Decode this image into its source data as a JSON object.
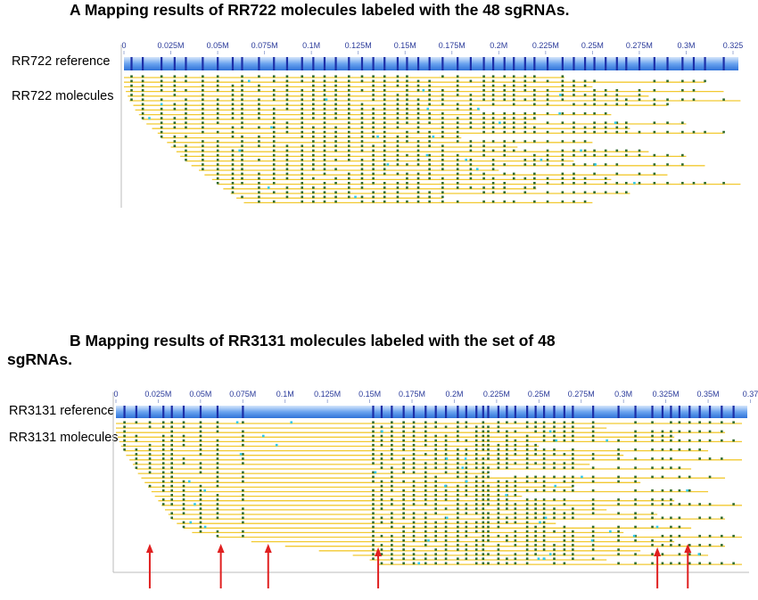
{
  "panel_a": {
    "title": "A   Mapping results of RR722 molecules labeled with the 48 sgRNAs.",
    "reference_label": "RR722 reference",
    "molecules_label": "RR722 molecules",
    "ruler_ticks": [
      "0",
      "0.025M",
      "0.05M",
      "0.075M",
      "0.1M",
      "0.125M",
      "0.15M",
      "0.175M",
      "0.2M",
      "0.225M",
      "0.25M",
      "0.275M",
      "0.3M",
      "0.325"
    ],
    "ruler_max": 0.325,
    "reference_sites": [
      0.004,
      0.01,
      0.02,
      0.027,
      0.033,
      0.042,
      0.05,
      0.058,
      0.063,
      0.072,
      0.08,
      0.087,
      0.095,
      0.101,
      0.107,
      0.113,
      0.12,
      0.127,
      0.133,
      0.139,
      0.146,
      0.151,
      0.157,
      0.163,
      0.17,
      0.178,
      0.185,
      0.192,
      0.197,
      0.203,
      0.208,
      0.214,
      0.219,
      0.226,
      0.234,
      0.24,
      0.246,
      0.251,
      0.257,
      0.263,
      0.268,
      0.275,
      0.283,
      0.29,
      0.298,
      0.304,
      0.31,
      0.32
    ],
    "molecules": [
      {
        "start": 0.0,
        "end": 0.235
      },
      {
        "start": 0.0,
        "end": 0.31
      },
      {
        "start": 0.0,
        "end": 0.25
      },
      {
        "start": 0.001,
        "end": 0.32
      },
      {
        "start": 0.002,
        "end": 0.28
      },
      {
        "start": 0.003,
        "end": 0.33
      },
      {
        "start": 0.005,
        "end": 0.29
      },
      {
        "start": 0.006,
        "end": 0.19
      },
      {
        "start": 0.008,
        "end": 0.26
      },
      {
        "start": 0.01,
        "end": 0.22
      },
      {
        "start": 0.012,
        "end": 0.3
      },
      {
        "start": 0.015,
        "end": 0.27
      },
      {
        "start": 0.018,
        "end": 0.32
      },
      {
        "start": 0.02,
        "end": 0.18
      },
      {
        "start": 0.023,
        "end": 0.25
      },
      {
        "start": 0.025,
        "end": 0.21
      },
      {
        "start": 0.028,
        "end": 0.28
      },
      {
        "start": 0.03,
        "end": 0.3
      },
      {
        "start": 0.033,
        "end": 0.24
      },
      {
        "start": 0.036,
        "end": 0.31
      },
      {
        "start": 0.04,
        "end": 0.2
      },
      {
        "start": 0.043,
        "end": 0.29
      },
      {
        "start": 0.047,
        "end": 0.26
      },
      {
        "start": 0.05,
        "end": 0.33
      },
      {
        "start": 0.053,
        "end": 0.22
      },
      {
        "start": 0.057,
        "end": 0.27
      },
      {
        "start": 0.06,
        "end": 0.17
      },
      {
        "start": 0.064,
        "end": 0.25
      }
    ]
  },
  "panel_b": {
    "title_line1": "B   Mapping results of RR3131 molecules labeled with the set of 48",
    "title_line2": "sgRNAs.",
    "reference_label": "RR3131 reference",
    "molecules_label": "RR3131 molecules",
    "ruler_ticks": [
      "0",
      "0.025M",
      "0.05M",
      "0.075M",
      "0.1M",
      "0.125M",
      "0.15M",
      "0.175M",
      "0.2M",
      "0.225M",
      "0.25M",
      "0.275M",
      "0.3M",
      "0.325M",
      "0.35M",
      "0.37"
    ],
    "ruler_max": 0.37,
    "reference_sites": [
      0.005,
      0.012,
      0.02,
      0.028,
      0.033,
      0.04,
      0.05,
      0.06,
      0.075,
      0.152,
      0.157,
      0.163,
      0.17,
      0.176,
      0.183,
      0.189,
      0.195,
      0.202,
      0.207,
      0.213,
      0.217,
      0.22,
      0.226,
      0.231,
      0.236,
      0.243,
      0.248,
      0.253,
      0.259,
      0.265,
      0.27,
      0.282,
      0.297,
      0.307,
      0.317,
      0.323,
      0.328,
      0.333,
      0.339,
      0.345,
      0.351,
      0.358,
      0.365
    ],
    "molecules": [
      {
        "start": 0.0,
        "end": 0.37
      },
      {
        "start": 0.0,
        "end": 0.29
      },
      {
        "start": 0.0,
        "end": 0.36
      },
      {
        "start": 0.001,
        "end": 0.33
      },
      {
        "start": 0.002,
        "end": 0.37
      },
      {
        "start": 0.003,
        "end": 0.25
      },
      {
        "start": 0.005,
        "end": 0.35
      },
      {
        "start": 0.006,
        "end": 0.3
      },
      {
        "start": 0.008,
        "end": 0.37
      },
      {
        "start": 0.01,
        "end": 0.28
      },
      {
        "start": 0.012,
        "end": 0.34
      },
      {
        "start": 0.013,
        "end": 0.22
      },
      {
        "start": 0.015,
        "end": 0.36
      },
      {
        "start": 0.017,
        "end": 0.31
      },
      {
        "start": 0.019,
        "end": 0.27
      },
      {
        "start": 0.021,
        "end": 0.35
      },
      {
        "start": 0.023,
        "end": 0.24
      },
      {
        "start": 0.025,
        "end": 0.33
      },
      {
        "start": 0.027,
        "end": 0.37
      },
      {
        "start": 0.029,
        "end": 0.29
      },
      {
        "start": 0.031,
        "end": 0.32
      },
      {
        "start": 0.033,
        "end": 0.36
      },
      {
        "start": 0.036,
        "end": 0.26
      },
      {
        "start": 0.04,
        "end": 0.34
      },
      {
        "start": 0.045,
        "end": 0.3
      },
      {
        "start": 0.06,
        "end": 0.37
      },
      {
        "start": 0.08,
        "end": 0.33
      },
      {
        "start": 0.1,
        "end": 0.36
      },
      {
        "start": 0.12,
        "end": 0.31
      },
      {
        "start": 0.14,
        "end": 0.35
      },
      {
        "start": 0.15,
        "end": 0.29
      },
      {
        "start": 0.155,
        "end": 0.37
      }
    ],
    "arrows_at": [
      0.02,
      0.062,
      0.09,
      0.155,
      0.32,
      0.338
    ]
  },
  "colors": {
    "ruler_light": "#bcd6f5",
    "ruler_dark": "#3b7fe0",
    "site_mark": "#1c2fa8",
    "molecule_line": "#f2c930",
    "label_dot": "#2f6b2f",
    "unaligned_dot": "#33c8e8",
    "arrow": "#e02020",
    "tick_text": "#2a3a9a"
  }
}
